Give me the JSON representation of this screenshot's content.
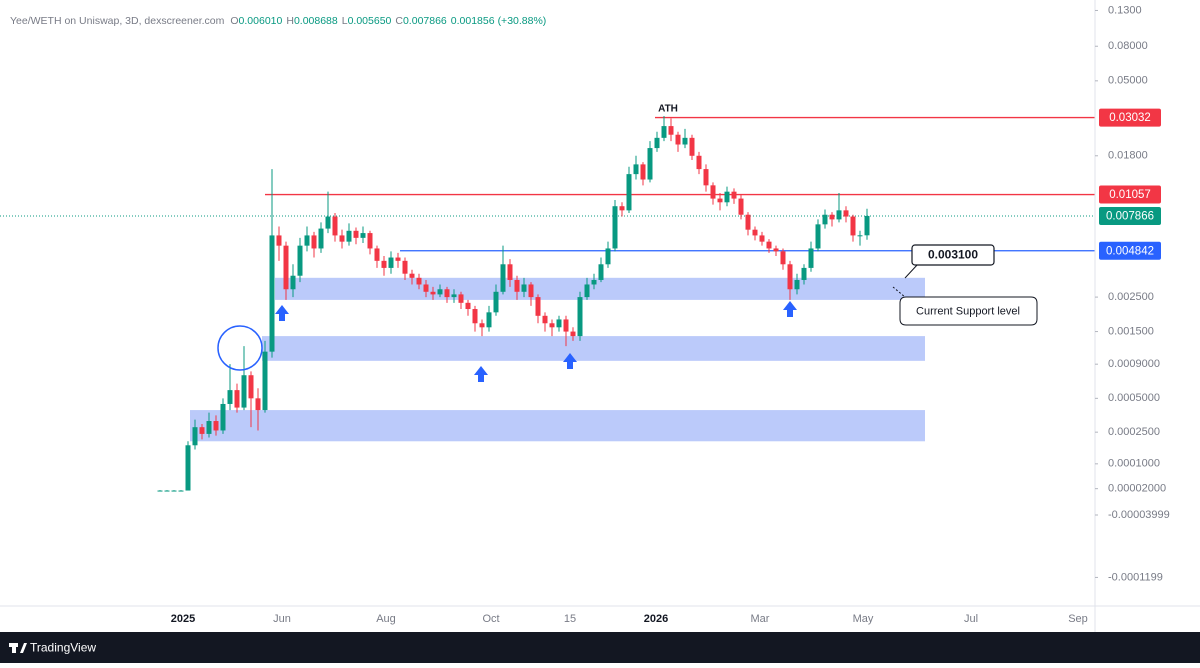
{
  "chart_data": {
    "type": "candlestick",
    "title": "Yee/WETH on Uniswap, 3D, dexscreener.com",
    "legend_values": [
      {
        "key": "O",
        "value": 0.00601,
        "label": "0.006010"
      },
      {
        "key": "H",
        "value": 0.008688,
        "label": "0.008688"
      },
      {
        "key": "L",
        "value": 0.00565,
        "label": "0.005650"
      },
      {
        "key": "C",
        "value": 0.007866,
        "label": "0.007866"
      }
    ],
    "change": {
      "value": 0.001856,
      "label": "0.001856"
    },
    "change_pct": {
      "value": 30.88,
      "label": "(+30.88%)"
    },
    "log_scale": true,
    "up_color": "#089981",
    "down_color": "#f23645",
    "open": [
      1.5e-05,
      1.5e-05,
      1.5e-05,
      1.5e-05,
      1.5e-05,
      0.00018,
      0.00028,
      0.00024,
      0.00032,
      0.00026,
      0.00045,
      0.00058,
      0.00042,
      0.00075,
      0.0005,
      0.0004,
      0.0011,
      0.006,
      0.0052,
      0.0028,
      0.0034,
      0.0052,
      0.006,
      0.005,
      0.0066,
      0.0078,
      0.006,
      0.0055,
      0.0064,
      0.0058,
      0.0062,
      0.005,
      0.0042,
      0.0038,
      0.0044,
      0.0042,
      0.0035,
      0.0033,
      0.003,
      0.0027,
      0.0026,
      0.0028,
      0.0025,
      0.0026,
      0.0023,
      0.0021,
      0.0017,
      0.0016,
      0.002,
      0.0027,
      0.004,
      0.0032,
      0.0027,
      0.003,
      0.0025,
      0.0019,
      0.0017,
      0.0016,
      0.0018,
      0.0015,
      0.0014,
      0.0025,
      0.003,
      0.0032,
      0.004,
      0.005,
      0.009,
      0.0085,
      0.014,
      0.016,
      0.013,
      0.02,
      0.023,
      0.027,
      0.024,
      0.021,
      0.023,
      0.018,
      0.015,
      0.012,
      0.01,
      0.0095,
      0.011,
      0.01,
      0.008,
      0.0065,
      0.006,
      0.0055,
      0.005,
      0.0048,
      0.004,
      0.0028,
      0.0032,
      0.0038,
      0.005,
      0.007,
      0.008,
      0.0075,
      0.0085,
      0.0078,
      0.006,
      0.00601
    ],
    "high": [
      1.6e-05,
      1.6e-05,
      1.6e-05,
      1.6e-05,
      0.0002,
      0.00033,
      0.0003,
      0.00038,
      0.00036,
      0.0005,
      0.0009,
      0.00065,
      0.0012,
      0.0008,
      0.0006,
      0.0013,
      0.015,
      0.0068,
      0.0055,
      0.004,
      0.0058,
      0.0068,
      0.0063,
      0.0072,
      0.011,
      0.0082,
      0.0065,
      0.0071,
      0.0067,
      0.0068,
      0.0064,
      0.0052,
      0.0045,
      0.0048,
      0.0047,
      0.0044,
      0.0037,
      0.0035,
      0.0032,
      0.0029,
      0.003,
      0.0029,
      0.0028,
      0.0027,
      0.0024,
      0.0022,
      0.0018,
      0.0022,
      0.003,
      0.0052,
      0.0043,
      0.0034,
      0.0033,
      0.0031,
      0.0026,
      0.002,
      0.0018,
      0.0019,
      0.0019,
      0.0016,
      0.0027,
      0.0033,
      0.0035,
      0.0044,
      0.0055,
      0.0098,
      0.0095,
      0.0155,
      0.018,
      0.0165,
      0.022,
      0.025,
      0.031,
      0.03,
      0.025,
      0.026,
      0.024,
      0.019,
      0.016,
      0.0125,
      0.0108,
      0.0118,
      0.0115,
      0.0105,
      0.0083,
      0.0068,
      0.0063,
      0.0057,
      0.0052,
      0.005,
      0.0042,
      0.0035,
      0.004,
      0.0055,
      0.0075,
      0.0086,
      0.0083,
      0.0108,
      0.009,
      0.008,
      0.0064,
      0.008688
    ],
    "low": [
      1.4e-05,
      1.4e-05,
      1.4e-05,
      1.4e-05,
      1.5e-05,
      0.00016,
      0.00021,
      0.00022,
      0.00023,
      0.00024,
      0.0004,
      0.00038,
      0.0004,
      0.00028,
      0.00026,
      0.00038,
      0.001,
      0.0042,
      0.0024,
      0.0025,
      0.0031,
      0.0048,
      0.0044,
      0.0047,
      0.0062,
      0.0055,
      0.005,
      0.0052,
      0.0053,
      0.0054,
      0.0046,
      0.0038,
      0.0034,
      0.0035,
      0.0038,
      0.0032,
      0.003,
      0.0028,
      0.0025,
      0.0024,
      0.0025,
      0.0023,
      0.0023,
      0.0021,
      0.0019,
      0.0015,
      0.0014,
      0.0015,
      0.0019,
      0.0026,
      0.0029,
      0.0024,
      0.0025,
      0.0022,
      0.0017,
      0.0015,
      0.0014,
      0.0015,
      0.0012,
      0.0013,
      0.0013,
      0.0024,
      0.0028,
      0.0031,
      0.0038,
      0.0048,
      0.0078,
      0.0082,
      0.013,
      0.012,
      0.0125,
      0.019,
      0.022,
      0.022,
      0.019,
      0.02,
      0.017,
      0.014,
      0.011,
      0.0092,
      0.0085,
      0.009,
      0.0093,
      0.0075,
      0.006,
      0.0056,
      0.0052,
      0.0047,
      0.0045,
      0.0037,
      0.0024,
      0.0026,
      0.003,
      0.0036,
      0.0048,
      0.0066,
      0.0068,
      0.0072,
      0.0072,
      0.0055,
      0.0052,
      0.00565
    ],
    "close": [
      1.5e-05,
      1.5e-05,
      1.5e-05,
      1.5e-05,
      0.00018,
      0.00028,
      0.00024,
      0.00032,
      0.00026,
      0.00045,
      0.00058,
      0.00042,
      0.00075,
      0.0005,
      0.0004,
      0.0011,
      0.006,
      0.0052,
      0.0028,
      0.0034,
      0.0052,
      0.006,
      0.005,
      0.0066,
      0.0078,
      0.006,
      0.0055,
      0.0064,
      0.0058,
      0.0062,
      0.005,
      0.0042,
      0.0038,
      0.0044,
      0.0042,
      0.0035,
      0.0033,
      0.003,
      0.0027,
      0.0026,
      0.0028,
      0.0025,
      0.0026,
      0.0023,
      0.0021,
      0.0017,
      0.0016,
      0.002,
      0.0027,
      0.004,
      0.0032,
      0.0027,
      0.003,
      0.0025,
      0.0019,
      0.0017,
      0.0016,
      0.0018,
      0.0015,
      0.0014,
      0.0025,
      0.003,
      0.0032,
      0.004,
      0.005,
      0.009,
      0.0085,
      0.014,
      0.016,
      0.013,
      0.02,
      0.023,
      0.027,
      0.024,
      0.021,
      0.023,
      0.018,
      0.015,
      0.012,
      0.01,
      0.0095,
      0.011,
      0.01,
      0.008,
      0.0065,
      0.006,
      0.0055,
      0.005,
      0.0048,
      0.004,
      0.0028,
      0.0032,
      0.0038,
      0.005,
      0.007,
      0.008,
      0.0075,
      0.0085,
      0.0078,
      0.006,
      0.00601,
      0.007866
    ],
    "ylim": [
      -0.00013,
      0.14
    ],
    "yticks": [
      {
        "value": 0.13,
        "label": "0.1300"
      },
      {
        "value": 0.08,
        "label": "0.08000"
      },
      {
        "value": 0.05,
        "label": "0.05000"
      },
      {
        "value": 0.018,
        "label": "0.01800"
      },
      {
        "value": 0.0025,
        "label": "0.002500"
      },
      {
        "value": 0.0015,
        "label": "0.001500"
      },
      {
        "value": 0.0009,
        "label": "0.0009000"
      },
      {
        "value": 0.0005,
        "label": "0.0005000"
      },
      {
        "value": 0.00025,
        "label": "0.0002500"
      },
      {
        "value": 0.0001,
        "label": "0.0001000"
      },
      {
        "value": 2e-05,
        "label": "0.00002000"
      },
      {
        "value": -3.999e-05,
        "label": "-0.00003999"
      },
      {
        "value": -0.0001199,
        "label": "-0.0001199"
      }
    ],
    "x_labels": [
      "2025",
      "Jun",
      "Aug",
      "Oct",
      "15",
      "2026",
      "Mar",
      "May",
      "Jul",
      "Sep"
    ],
    "price_lines": [
      {
        "value": 0.03032,
        "label": "0.03032",
        "color": "#f23645"
      },
      {
        "value": 0.01057,
        "label": "0.01057",
        "color": "#f23645"
      },
      {
        "value": 0.007866,
        "label": "0.007866",
        "color": "#089981"
      },
      {
        "value": 0.004842,
        "label": "0.004842",
        "color": "#2962ff"
      }
    ],
    "zones": [
      {
        "low": 0.0024,
        "high": 0.0033,
        "color": "#b4c4fa"
      },
      {
        "low": 0.00095,
        "high": 0.0014,
        "color": "#b4c4fa"
      },
      {
        "low": 0.0002,
        "high": 0.0004,
        "color": "#b4c4fa"
      }
    ],
    "annotations": {
      "ath": "ATH",
      "support_price": {
        "value": 0.0031,
        "label": "0.003100"
      },
      "support_note": "Current Support level"
    },
    "footer": "TradingView"
  }
}
